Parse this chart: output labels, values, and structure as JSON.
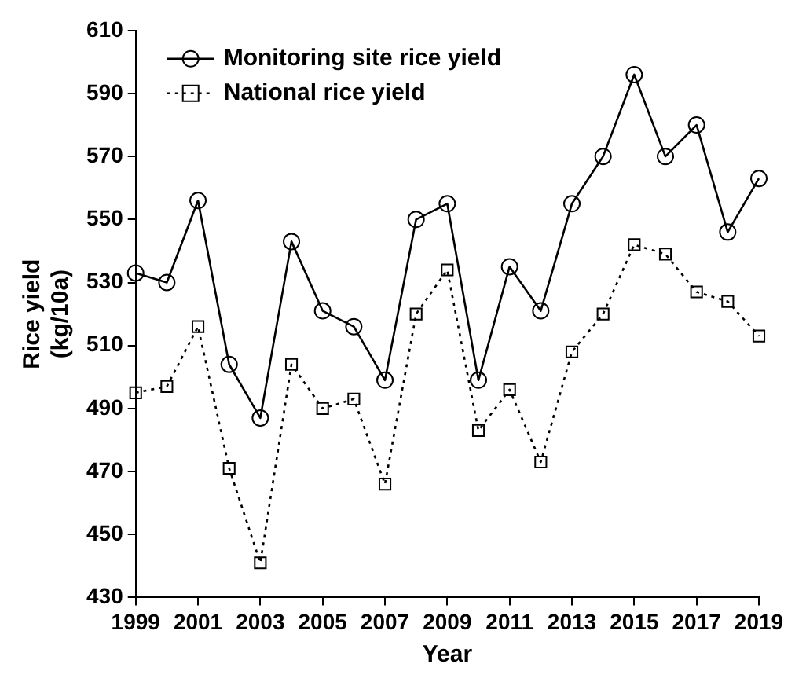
{
  "chart_data": {
    "type": "line",
    "xlabel": "Year",
    "ylabel": "Rice yield\n(kg/10a)",
    "x": [
      1999,
      2000,
      2001,
      2002,
      2003,
      2004,
      2005,
      2006,
      2007,
      2008,
      2009,
      2010,
      2011,
      2012,
      2013,
      2014,
      2015,
      2016,
      2017,
      2018,
      2019
    ],
    "xlim": [
      1999,
      2019
    ],
    "xticks": [
      1999,
      2001,
      2003,
      2005,
      2007,
      2009,
      2011,
      2013,
      2015,
      2017,
      2019
    ],
    "ylim": [
      430,
      610
    ],
    "yticks": [
      430,
      450,
      470,
      490,
      510,
      530,
      550,
      570,
      590,
      610
    ],
    "grid": false,
    "legend": "top left",
    "series": [
      {
        "name": "Monitoring site rice yield",
        "color": "#000000",
        "marker": "circle",
        "line_style": "solid",
        "values": [
          533,
          530,
          556,
          504,
          487,
          543,
          521,
          516,
          499,
          550,
          555,
          499,
          535,
          521,
          555,
          570,
          596,
          570,
          580,
          546,
          563
        ]
      },
      {
        "name": "National rice yield",
        "color": "#000000",
        "marker": "square",
        "line_style": "dotted",
        "values": [
          495,
          497,
          516,
          471,
          441,
          504,
          490,
          493,
          466,
          520,
          534,
          483,
          496,
          473,
          508,
          520,
          542,
          539,
          527,
          524,
          513
        ]
      }
    ]
  }
}
